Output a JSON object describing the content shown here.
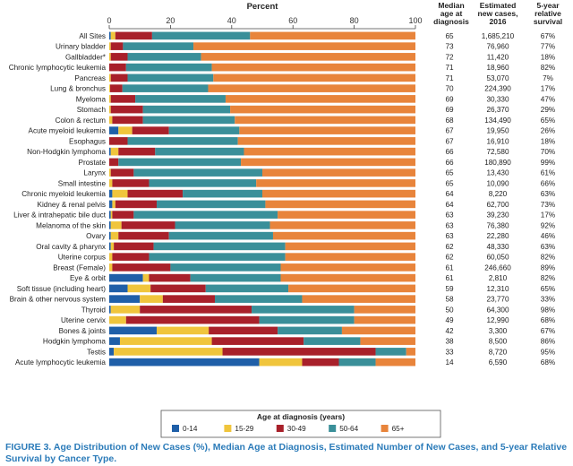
{
  "headers": {
    "median_age": "Median age at diagnosis",
    "new_cases": "Estimated new cases, 2016",
    "survival": "5-year relative survival"
  },
  "caption": "FIGURE 3. Age Distribution of New Cases (%), Median Age at Diagnosis, Estimated Number of New Cases, and 5-year Relative Survival by Cancer Type.",
  "chart_data": {
    "type": "bar",
    "orientation": "horizontal",
    "stacked": true,
    "xlabel": "Percent",
    "xlim": [
      0,
      100
    ],
    "xticks": [
      0,
      20,
      40,
      60,
      80,
      100
    ],
    "legend": {
      "title": "Age at diagnosis (years)",
      "placement": "bottom"
    },
    "series": [
      {
        "name": "0-14",
        "color": "#1f5fa8"
      },
      {
        "name": "15-29",
        "color": "#f0c53c"
      },
      {
        "name": "30-49",
        "color": "#a8202a"
      },
      {
        "name": "50-64",
        "color": "#3a8f99"
      },
      {
        "name": "65+",
        "color": "#e8843b"
      }
    ],
    "rows": [
      {
        "label": "All Sites",
        "values": [
          0.5,
          1.5,
          12,
          32,
          54
        ],
        "median_age": "65",
        "new_cases": "1,685,210",
        "survival": "67%"
      },
      {
        "label": "Urinary bladder",
        "values": [
          0,
          0.5,
          4,
          23,
          72.5
        ],
        "median_age": "73",
        "new_cases": "76,960",
        "survival": "77%"
      },
      {
        "label": "Gallbladder*",
        "values": [
          0,
          0.5,
          5.5,
          24,
          70
        ],
        "median_age": "72",
        "new_cases": "11,420",
        "survival": "18%"
      },
      {
        "label": "Chronic lymphocytic leukemia",
        "values": [
          0,
          0,
          5.5,
          28,
          66.5
        ],
        "median_age": "71",
        "new_cases": "18,960",
        "survival": "82%"
      },
      {
        "label": "Pancreas",
        "values": [
          0,
          0.5,
          5.5,
          28,
          66
        ],
        "median_age": "71",
        "new_cases": "53,070",
        "survival": "7%"
      },
      {
        "label": "Lung & bronchus",
        "values": [
          0,
          0.3,
          4,
          28,
          67.7
        ],
        "median_age": "70",
        "new_cases": "224,390",
        "survival": "17%"
      },
      {
        "label": "Myeloma",
        "values": [
          0,
          0.5,
          8,
          29.5,
          62
        ],
        "median_age": "69",
        "new_cases": "30,330",
        "survival": "47%"
      },
      {
        "label": "Stomach",
        "values": [
          0,
          0.5,
          10.5,
          28.5,
          60.5
        ],
        "median_age": "69",
        "new_cases": "26,370",
        "survival": "29%"
      },
      {
        "label": "Colon & rectum",
        "values": [
          0,
          1,
          10,
          30,
          59
        ],
        "median_age": "68",
        "new_cases": "134,490",
        "survival": "65%"
      },
      {
        "label": "Acute myeloid leukemia",
        "values": [
          3,
          4.5,
          12,
          23,
          57.5
        ],
        "median_age": "67",
        "new_cases": "19,950",
        "survival": "26%"
      },
      {
        "label": "Esophagus",
        "values": [
          0,
          0,
          6,
          36,
          58
        ],
        "median_age": "67",
        "new_cases": "16,910",
        "survival": "18%"
      },
      {
        "label": "Non-Hodgkin lymphoma",
        "values": [
          0.5,
          2.5,
          12,
          29,
          56
        ],
        "median_age": "66",
        "new_cases": "72,580",
        "survival": "70%"
      },
      {
        "label": "Prostate",
        "values": [
          0,
          0,
          3,
          40,
          57
        ],
        "median_age": "66",
        "new_cases": "180,890",
        "survival": "99%"
      },
      {
        "label": "Larynx",
        "values": [
          0,
          0.5,
          7.5,
          42,
          50
        ],
        "median_age": "65",
        "new_cases": "13,430",
        "survival": "61%"
      },
      {
        "label": "Small intestine",
        "values": [
          0,
          1,
          12,
          35,
          52
        ],
        "median_age": "65",
        "new_cases": "10,090",
        "survival": "66%"
      },
      {
        "label": "Chronic myeloid leukemia",
        "values": [
          1,
          5,
          18,
          26,
          50
        ],
        "median_age": "64",
        "new_cases": "8,220",
        "survival": "63%"
      },
      {
        "label": "Kidney & renal pelvis",
        "values": [
          1,
          1,
          13.5,
          35.5,
          49
        ],
        "median_age": "64",
        "new_cases": "62,700",
        "survival": "73%"
      },
      {
        "label": "Liver & intrahepatic bile duct",
        "values": [
          0.5,
          0.5,
          7,
          47,
          45
        ],
        "median_age": "63",
        "new_cases": "39,230",
        "survival": "17%"
      },
      {
        "label": "Melanoma of the skin",
        "values": [
          0.5,
          3.5,
          17.5,
          31,
          47.5
        ],
        "median_age": "63",
        "new_cases": "76,380",
        "survival": "92%"
      },
      {
        "label": "Ovary",
        "values": [
          0.5,
          2.5,
          16.5,
          34,
          46.5
        ],
        "median_age": "63",
        "new_cases": "22,280",
        "survival": "46%"
      },
      {
        "label": "Oral cavity & pharynx",
        "values": [
          0.5,
          1,
          13,
          43,
          42.5
        ],
        "median_age": "62",
        "new_cases": "48,330",
        "survival": "63%"
      },
      {
        "label": "Uterine corpus",
        "values": [
          0,
          1,
          12,
          44.5,
          42.5
        ],
        "median_age": "62",
        "new_cases": "60,050",
        "survival": "82%"
      },
      {
        "label": "Breast (Female)",
        "values": [
          0,
          1,
          19,
          36,
          44
        ],
        "median_age": "61",
        "new_cases": "246,660",
        "survival": "89%"
      },
      {
        "label": "Eye & orbit",
        "values": [
          11,
          2,
          13.5,
          29.5,
          44
        ],
        "median_age": "61",
        "new_cases": "2,810",
        "survival": "82%"
      },
      {
        "label": "Soft tissue (including heart)",
        "values": [
          6,
          7.5,
          18,
          27,
          41.5
        ],
        "median_age": "59",
        "new_cases": "12,310",
        "survival": "65%"
      },
      {
        "label": "Brain & other nervous system",
        "values": [
          10,
          7.5,
          17,
          28.5,
          37
        ],
        "median_age": "58",
        "new_cases": "23,770",
        "survival": "33%"
      },
      {
        "label": "Thyroid",
        "values": [
          0.5,
          9.5,
          36.5,
          33.5,
          20
        ],
        "median_age": "50",
        "new_cases": "64,300",
        "survival": "98%"
      },
      {
        "label": "Uterine cervix",
        "values": [
          0,
          5.5,
          43.5,
          31,
          20
        ],
        "median_age": "49",
        "new_cases": "12,990",
        "survival": "68%"
      },
      {
        "label": "Bones & joints",
        "values": [
          15.5,
          17,
          22.5,
          21,
          24
        ],
        "median_age": "42",
        "new_cases": "3,300",
        "survival": "67%"
      },
      {
        "label": "Hodgkin lymphoma",
        "values": [
          3.5,
          30,
          30,
          18.5,
          18
        ],
        "median_age": "38",
        "new_cases": "8,500",
        "survival": "86%"
      },
      {
        "label": "Testis",
        "values": [
          1.5,
          35.5,
          50,
          10,
          3
        ],
        "median_age": "33",
        "new_cases": "8,720",
        "survival": "95%"
      },
      {
        "label": "Acute lymphocytic leukemia",
        "values": [
          49,
          14,
          12,
          12,
          13
        ],
        "median_age": "14",
        "new_cases": "6,590",
        "survival": "68%"
      }
    ]
  }
}
